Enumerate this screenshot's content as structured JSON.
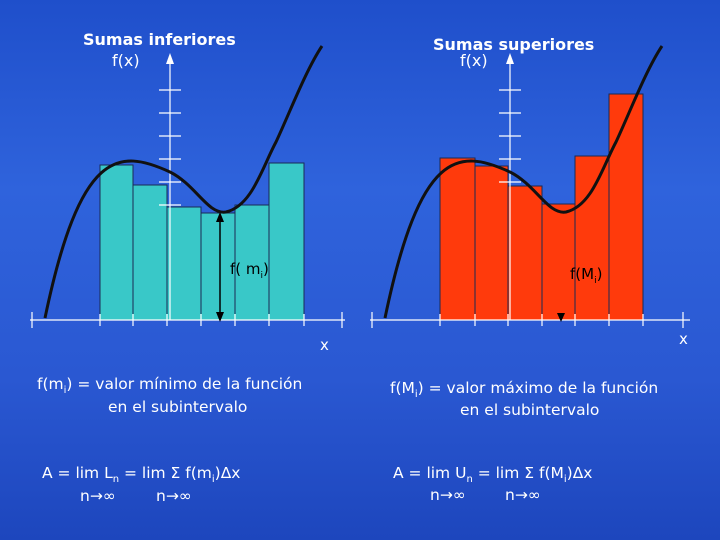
{
  "left_panel": {
    "title": "Sumas inferiores",
    "y_axis_label": "f(x)",
    "x_axis_label": "x",
    "bar_label": "f( m",
    "bar_label_sub": "i",
    "bar_label_close": ")",
    "bar_color": "#39c8c8",
    "definition_line1": "f(m",
    "definition_sub": "i",
    "definition_rest": ") = valor mínimo de la función",
    "definition_line2": "en el subintervalo",
    "formula_line1": "A = lim L",
    "formula_n": "n",
    "formula_rest": " = lim Σ f(m",
    "formula_sub": "i",
    "formula_end": ")Δx",
    "formula_line2a": "n→∞",
    "formula_line2b": "n→∞"
  },
  "right_panel": {
    "title": "Sumas superiores",
    "y_axis_label": "f(x)",
    "x_axis_label": "x",
    "bar_label": "f(M",
    "bar_label_sub": "i",
    "bar_label_close": ")",
    "bar_color": "#ff3a0c",
    "definition_line1": "f(M",
    "definition_sub": "i",
    "definition_rest": ") = valor máximo de la función",
    "definition_line2": "en el subintervalo",
    "formula_line1": "A = lim U",
    "formula_n": "n",
    "formula_rest": " = lim Σ f(M",
    "formula_sub": "i",
    "formula_end": ")Δx",
    "formula_line2a": "n→∞",
    "formula_line2b": "n→∞"
  }
}
